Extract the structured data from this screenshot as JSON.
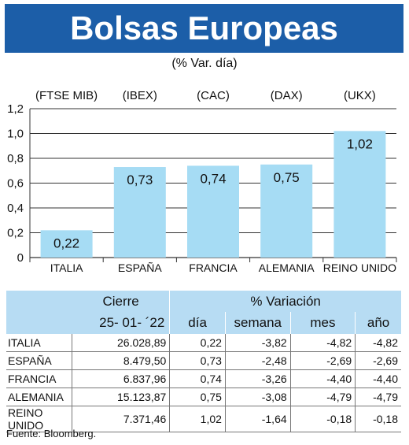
{
  "header": {
    "title": "Bolsas Europeas",
    "subtitle": "(% Var. día)"
  },
  "chart_data": {
    "type": "bar",
    "categories": [
      "ITALIA",
      "ESPAÑA",
      "FRANCIA",
      "ALEMANIA",
      "REINO UNIDO"
    ],
    "indices": [
      "(FTSE MIB)",
      "(IBEX)",
      "(CAC)",
      "(DAX)",
      "(UKX)"
    ],
    "values": [
      0.22,
      0.73,
      0.74,
      0.75,
      1.02
    ],
    "value_labels": [
      "0,22",
      "0,73",
      "0,74",
      "0,75",
      "1,02"
    ],
    "yticks": [
      "0",
      "0,2",
      "0,4",
      "0,6",
      "0,8",
      "1,0",
      "1,2"
    ],
    "ylim": [
      0,
      1.2
    ],
    "grid": true,
    "bar_color": "#a6dcf4"
  },
  "table": {
    "header_cierre": "Cierre",
    "header_variacion": "% Variación",
    "date": "25- 01- ´22",
    "cols": [
      "día",
      "semana",
      "mes",
      "año"
    ],
    "rows": [
      {
        "country": "ITALIA",
        "cierre": "26.028,89",
        "dia": "0,22",
        "semana": "-3,82",
        "mes": "-4,82",
        "anio": "-4,82"
      },
      {
        "country": "ESPAÑA",
        "cierre": "8.479,50",
        "dia": "0,73",
        "semana": "-2,48",
        "mes": "-2,69",
        "anio": "-2,69"
      },
      {
        "country": "FRANCIA",
        "cierre": "6.837,96",
        "dia": "0,74",
        "semana": "-3,26",
        "mes": "-4,40",
        "anio": "-4,40"
      },
      {
        "country": "ALEMANIA",
        "cierre": "15.123,87",
        "dia": "0,75",
        "semana": "-3,08",
        "mes": "-4,79",
        "anio": "-4,79"
      },
      {
        "country": "REINO UNIDO",
        "cierre": "7.371,46",
        "dia": "1,02",
        "semana": "-1,64",
        "mes": "-0,18",
        "anio": "-0,18"
      }
    ]
  },
  "source": "Fuente: Bloomberg."
}
